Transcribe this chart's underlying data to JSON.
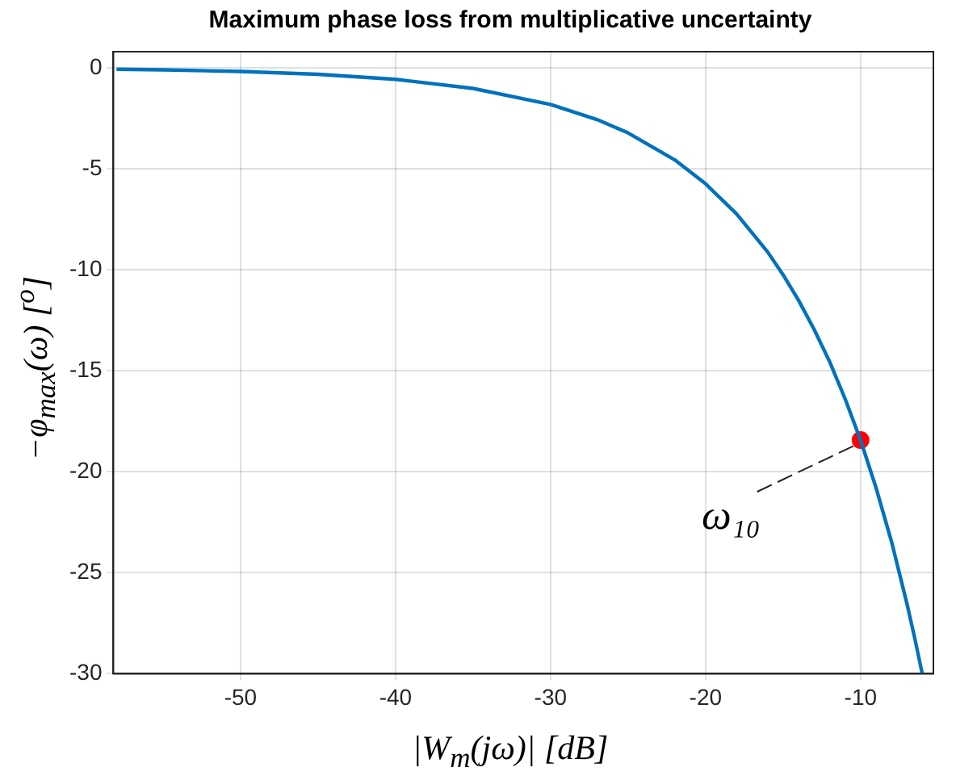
{
  "chart_data": {
    "type": "line",
    "title": "Maximum phase loss from multiplicative uncertainty",
    "xlabel": "|W$_{m}$(jω)| [dB]",
    "ylabel": "−φ$_{max}$(ω) [$^{o}$]",
    "xlim": [
      -58.2,
      -5.3
    ],
    "ylim": [
      -30,
      0.8
    ],
    "xticks": [
      -50,
      -40,
      -30,
      -20,
      -10
    ],
    "yticks": [
      -30,
      -25,
      -20,
      -15,
      -10,
      -5,
      0
    ],
    "grid": true,
    "annotations": [
      {
        "text": "ω₁₀",
        "x": -10,
        "y": -18.43
      }
    ],
    "series": [
      {
        "type": "line",
        "color": "#0072bd",
        "marker": "none",
        "line_style": "solid",
        "x": [
          -58,
          -55,
          -50,
          -45,
          -40,
          -35,
          -30,
          -27,
          -25,
          -22,
          -20,
          -18,
          -16,
          -15,
          -14,
          -13,
          -12,
          -11,
          -10,
          -9,
          -8,
          -7,
          -6.5,
          -6.02
        ],
        "values": [
          -0.07,
          -0.1,
          -0.18,
          -0.32,
          -0.57,
          -1.02,
          -1.81,
          -2.56,
          -3.22,
          -4.55,
          -5.74,
          -7.23,
          -9.11,
          -10.24,
          -11.51,
          -12.94,
          -14.54,
          -16.38,
          -18.43,
          -20.79,
          -23.46,
          -26.55,
          -28.25,
          -30
        ]
      },
      {
        "type": "scatter",
        "color": "#ff0000",
        "marker": "circle",
        "x": [
          -10
        ],
        "values": [
          -18.43
        ]
      }
    ]
  }
}
